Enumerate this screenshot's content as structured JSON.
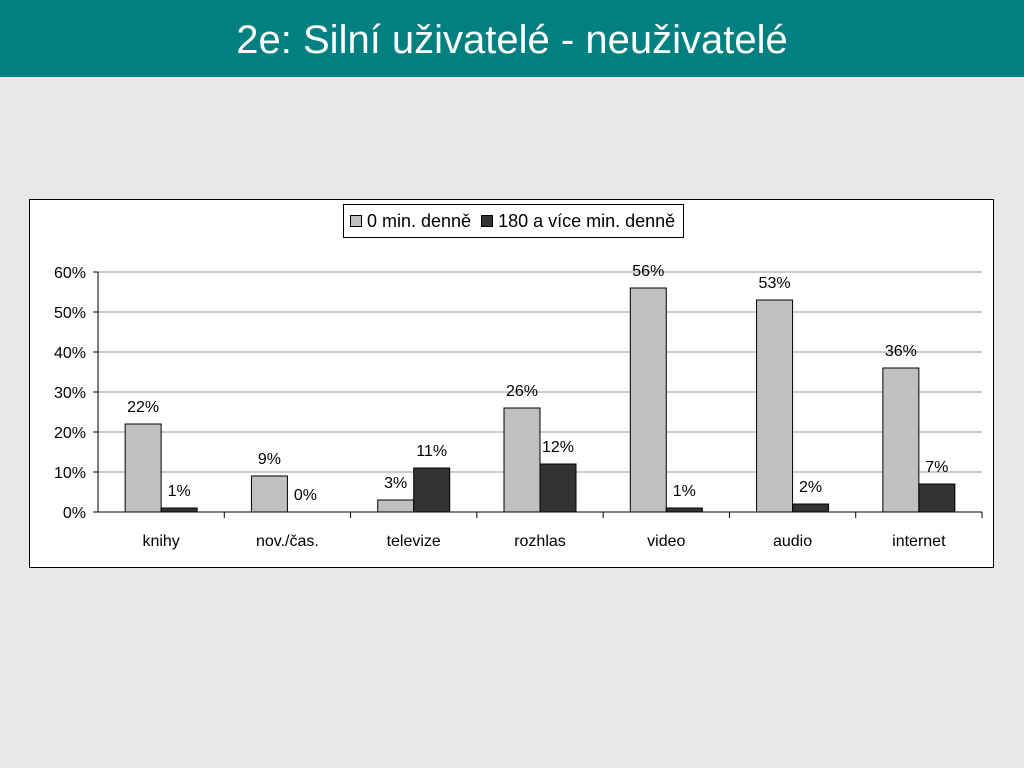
{
  "header": {
    "title": "2e: Silní uživatelé - neuživatelé"
  },
  "colors": {
    "header_bg": "#008080",
    "series_0": "#c0c0c0",
    "series_1": "#333333"
  },
  "chart_data": {
    "type": "bar",
    "categories": [
      "knihy",
      "nov./čas.",
      "televize",
      "rozhlas",
      "video",
      "audio",
      "internet"
    ],
    "series": [
      {
        "name": "0 min. denně",
        "values": [
          22,
          9,
          3,
          26,
          56,
          53,
          36
        ],
        "labels": [
          "22%",
          "9%",
          "3%",
          "26%",
          "56%",
          "53%",
          "36%"
        ]
      },
      {
        "name": "180 a více min. denně",
        "values": [
          1,
          0,
          11,
          12,
          1,
          2,
          7
        ],
        "labels": [
          "1%",
          "0%",
          "11%",
          "12%",
          "1%",
          "2%",
          "7%"
        ]
      }
    ],
    "yticks": [
      "0%",
      "10%",
      "20%",
      "30%",
      "40%",
      "50%",
      "60%"
    ],
    "ylim": [
      0,
      60
    ],
    "unit": "%",
    "grid": true,
    "legend_position": "top-center"
  }
}
